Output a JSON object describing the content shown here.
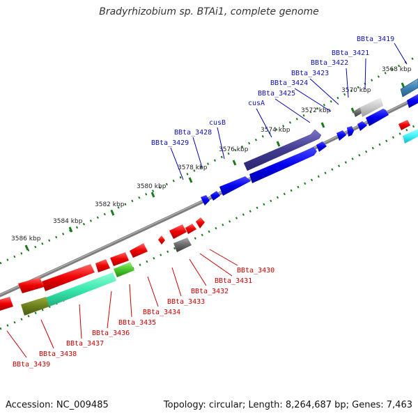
{
  "title": "Bradyrhizobium sp. BTAi1, complete genome",
  "footer": {
    "accession": "Accession: NC_009485",
    "topology": "Topology: circular; Length: 8,264,687 bp; Genes: 7,463"
  },
  "colors": {
    "forward_label": "#1010b0",
    "reverse_label": "#c80000",
    "backbone": "#808080",
    "tick": "#1a7a1a"
  },
  "ticks": [
    "3568 kbp",
    "3570 kbp",
    "3572 kbp",
    "3574 kbp",
    "3576 kbp",
    "3578 kbp",
    "3580 kbp",
    "3582 kbp",
    "3584 kbp",
    "3586 kbp"
  ],
  "forward_genes": [
    "BBta_3419",
    "BBta_3421",
    "BBta_3422",
    "BBta_3423",
    "BBta_3424",
    "BBta_3425",
    "cusA",
    "cusB",
    "BBta_3428",
    "BBta_3429"
  ],
  "reverse_genes": [
    "BBta_3430",
    "BBta_3431",
    "BBta_3432",
    "BBta_3433",
    "BBta_3434",
    "BBta_3435",
    "BBta_3436",
    "BBta_3437",
    "BBta_3438",
    "BBta_3439"
  ]
}
